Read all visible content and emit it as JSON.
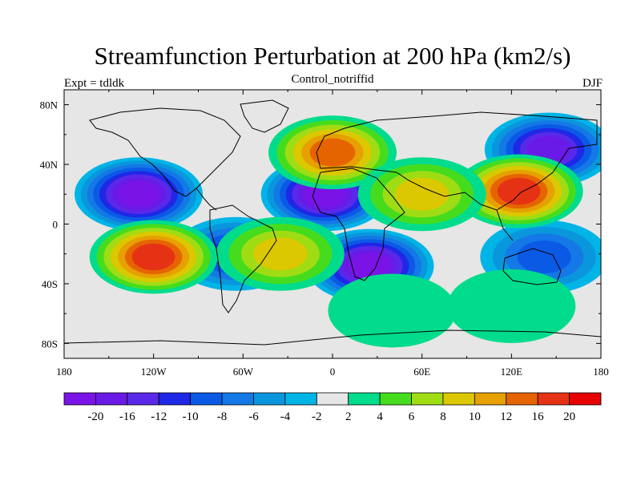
{
  "title": "Streamfunction Perturbation at 200 hPa (km2/s)",
  "left_string": "Expt = tdldk",
  "center_string": "Control_notriffid",
  "right_string": "DJF",
  "lat_labels": [
    "80N",
    "40N",
    "0",
    "40S",
    "80S"
  ],
  "lon_labels": [
    "180",
    "120W",
    "60W",
    "0",
    "60E",
    "120E",
    "180"
  ],
  "colorbar": {
    "colors": [
      "#7A14E6",
      "#6A1AE6",
      "#5A28E8",
      "#1E28E6",
      "#0A5AE6",
      "#1478E6",
      "#0A96DC",
      "#00B4E6",
      "#E6E6E6",
      "#00DC8C",
      "#46DC1E",
      "#A0DC14",
      "#DCC800",
      "#E6A000",
      "#E66400",
      "#E63214",
      "#E60000"
    ],
    "labels": [
      "-20",
      "-16",
      "-12",
      "-10",
      "-8",
      "-6",
      "-4",
      "-2",
      "2",
      "4",
      "6",
      "8",
      "10",
      "12",
      "16",
      "20"
    ]
  },
  "chart_data": {
    "type": "heatmap",
    "projection": "cylindrical-equidistant",
    "title": "Streamfunction Perturbation at 200 hPa (km2/s)",
    "subtitle": "Control_notriffid",
    "lon_range": [
      -180,
      180
    ],
    "lat_range": [
      -90,
      90
    ],
    "levels": [
      -20,
      -16,
      -12,
      -10,
      -8,
      -6,
      -4,
      -2,
      2,
      4,
      6,
      8,
      10,
      12,
      16,
      20
    ],
    "features": [
      {
        "lon": -130,
        "lat": 20,
        "value": -20
      },
      {
        "lon": -5,
        "lat": 20,
        "value": -20
      },
      {
        "lon": 25,
        "lat": -28,
        "value": -20
      },
      {
        "lon": 145,
        "lat": 50,
        "value": -18
      },
      {
        "lon": -65,
        "lat": -20,
        "value": -10
      },
      {
        "lon": 142,
        "lat": -22,
        "value": -8
      },
      {
        "lon": -120,
        "lat": -22,
        "value": 18
      },
      {
        "lon": 125,
        "lat": 22,
        "value": 18
      },
      {
        "lon": 0,
        "lat": 48,
        "value": 14
      },
      {
        "lon": 60,
        "lat": 20,
        "value": 8
      },
      {
        "lon": -35,
        "lat": -20,
        "value": 8
      },
      {
        "lon": 120,
        "lat": -55,
        "value": 3
      },
      {
        "lon": 40,
        "lat": -58,
        "value": 3
      }
    ]
  }
}
